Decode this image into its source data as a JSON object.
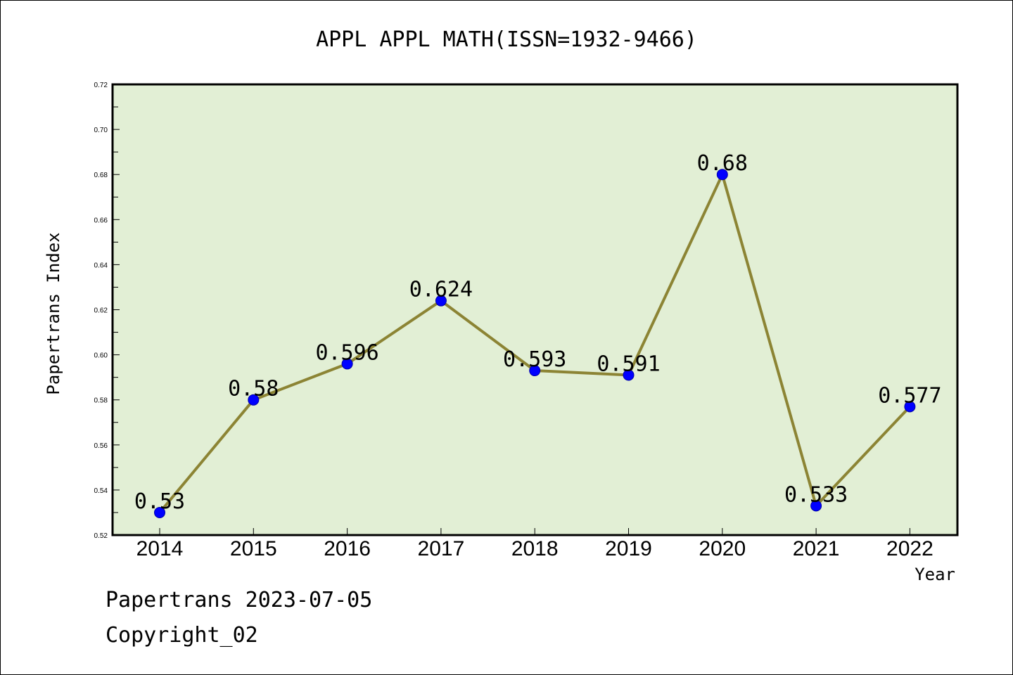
{
  "colors": {
    "plot_background": "#e2efd5",
    "line": "#8c8434",
    "marker_fill": "#0000ff",
    "marker_stroke": "#0000aa",
    "frame": "#000000"
  },
  "chart_data": {
    "type": "line",
    "title": "APPL APPL MATH(ISSN=1932-9466)",
    "xlabel": "Year",
    "ylabel": "Papertrans Index",
    "categories": [
      "2014",
      "2015",
      "2016",
      "2017",
      "2018",
      "2019",
      "2020",
      "2021",
      "2022"
    ],
    "series": [
      {
        "values": [
          0.53,
          0.58,
          0.596,
          0.624,
          0.593,
          0.591,
          0.68,
          0.533,
          0.577
        ],
        "labels": [
          "0.53",
          "0.58",
          "0.596",
          "0.624",
          "0.593",
          "0.591",
          "0.68",
          "0.533",
          "0.577"
        ]
      }
    ],
    "ylim": [
      0.52,
      0.72
    ],
    "yticks": [
      "0.52",
      "0.54",
      "0.56",
      "0.58",
      "0.60",
      "0.62",
      "0.64",
      "0.66",
      "0.68",
      "0.70",
      "0.72"
    ],
    "grid": false,
    "legend": "none"
  },
  "footer": {
    "line1": "Papertrans 2023-07-05",
    "line2": "Copyright_02"
  }
}
